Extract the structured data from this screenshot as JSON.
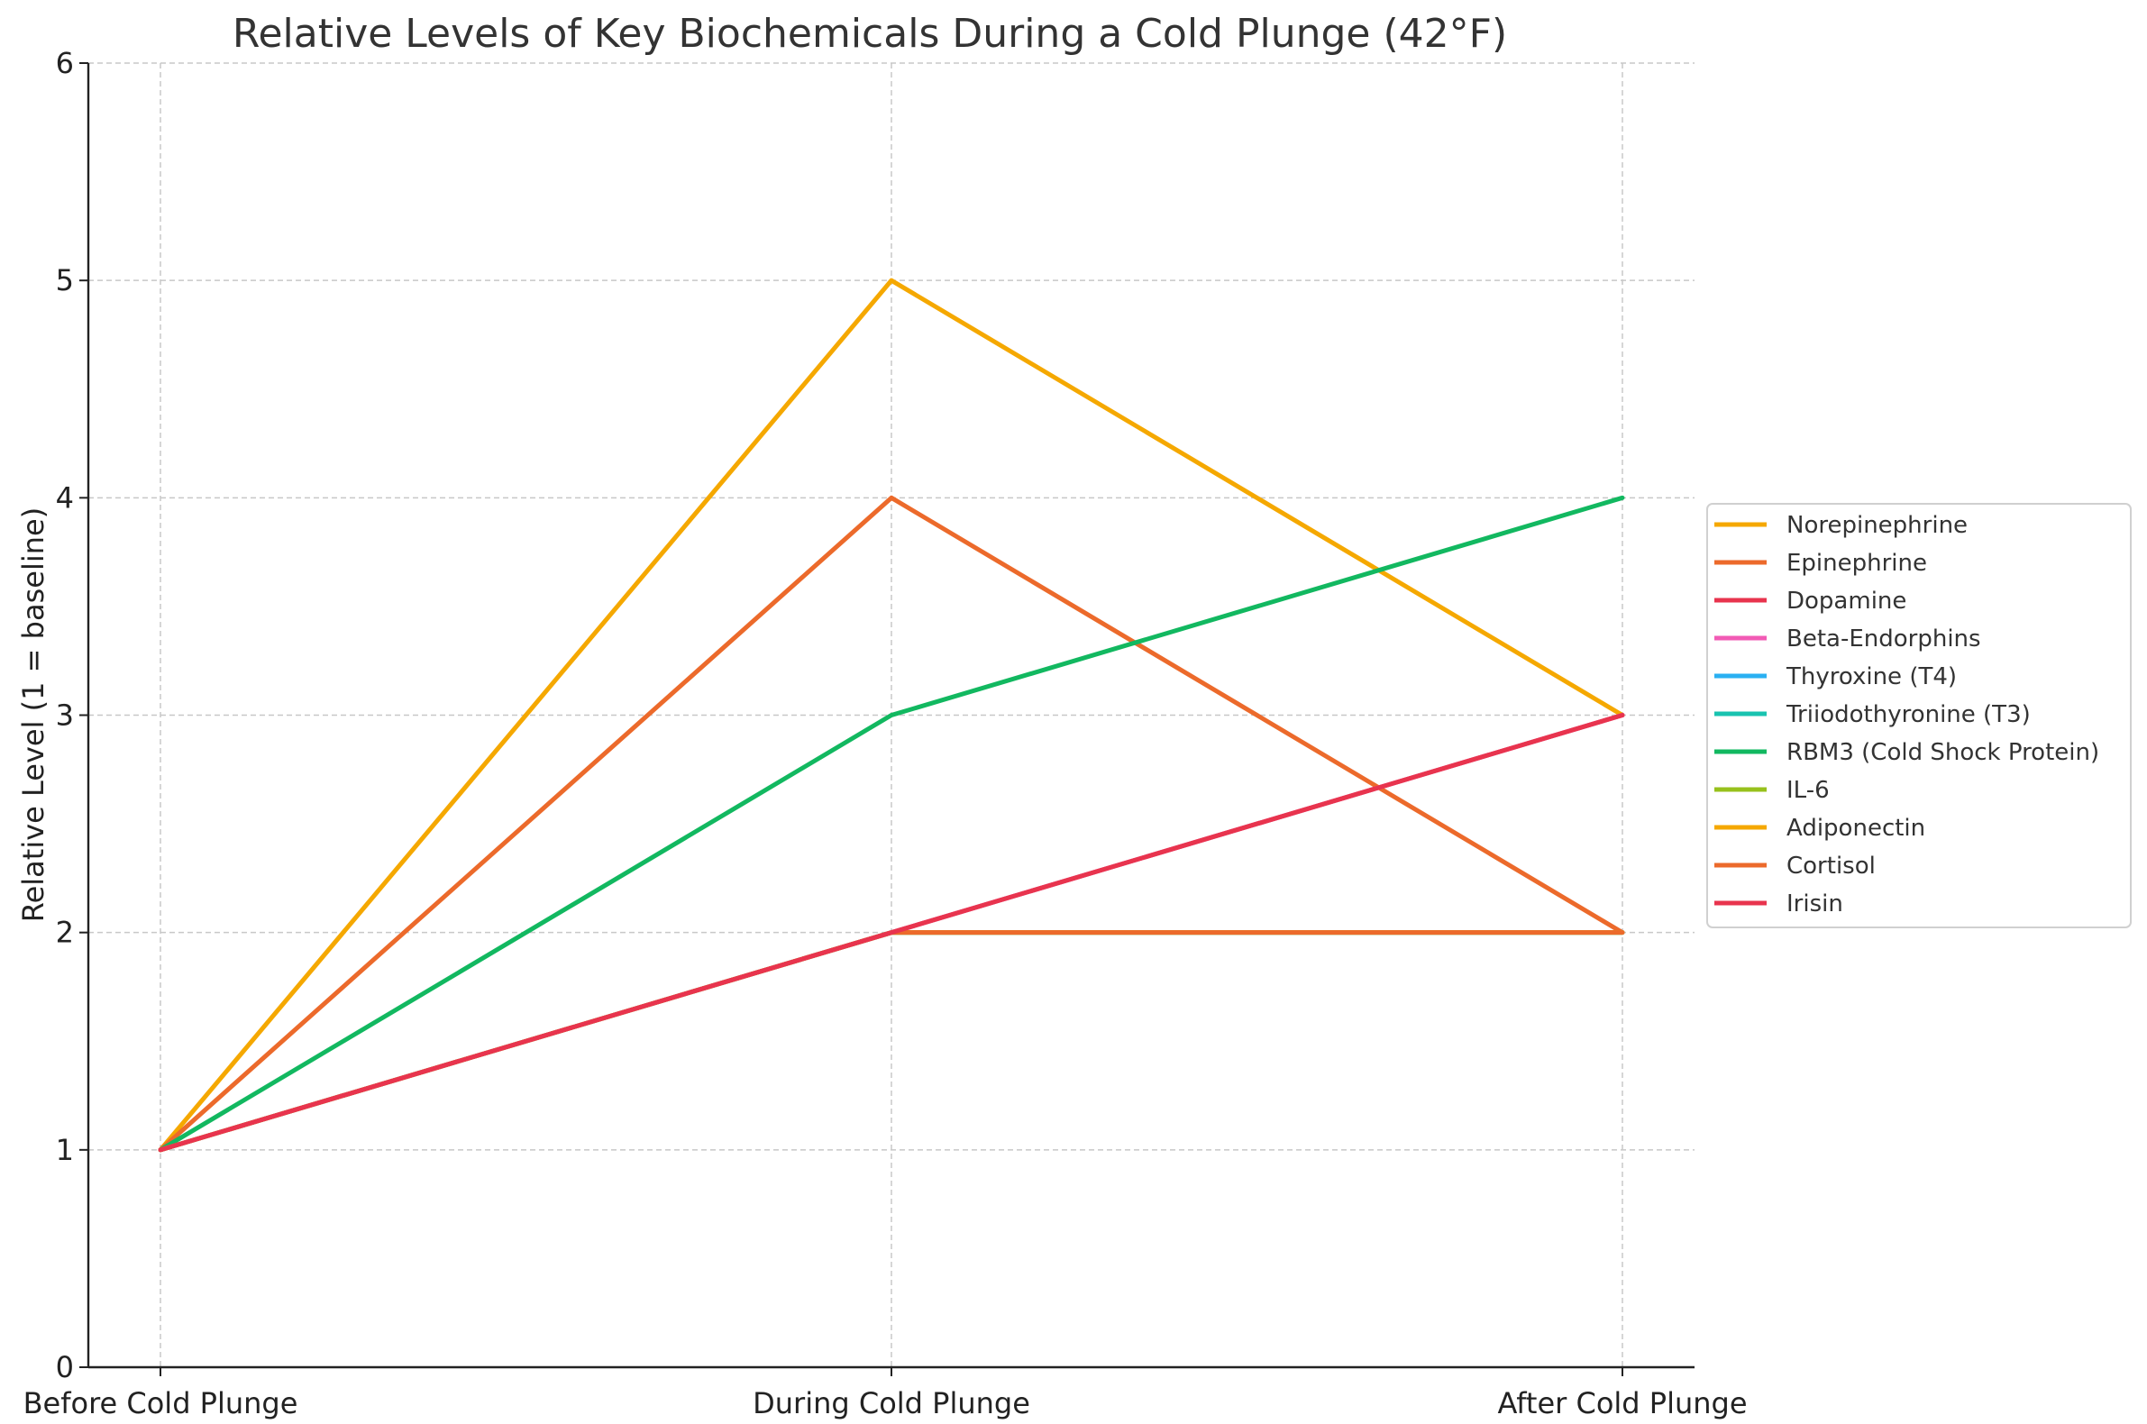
{
  "chart_data": {
    "type": "line",
    "title": "Relative Levels of Key Biochemicals During a Cold Plunge (42°F)",
    "xlabel": "",
    "ylabel": "Relative Level (1 = baseline)",
    "categories": [
      "Before Cold Plunge",
      "During Cold Plunge",
      "After Cold Plunge"
    ],
    "ylim": [
      0,
      6
    ],
    "yticks": [
      0,
      1,
      2,
      3,
      4,
      5,
      6
    ],
    "grid": true,
    "legend_position": "right",
    "series": [
      {
        "name": "Norepinephrine",
        "color": "#F5A800",
        "values": [
          1,
          5,
          3
        ]
      },
      {
        "name": "Epinephrine",
        "color": "#EC6A2B",
        "values": [
          1,
          4,
          2
        ]
      },
      {
        "name": "Dopamine",
        "color": "#E8344E",
        "values": [
          1,
          2,
          3
        ]
      },
      {
        "name": "Beta-Endorphins",
        "color": "#F25BB5",
        "values": [
          1,
          2,
          3
        ]
      },
      {
        "name": "Thyroxine (T4)",
        "color": "#2AB0F2",
        "values": [
          1,
          2,
          2
        ]
      },
      {
        "name": "Triiodothyronine (T3)",
        "color": "#19C3B0",
        "values": [
          1,
          2,
          2
        ]
      },
      {
        "name": "RBM3 (Cold Shock Protein)",
        "color": "#12B860",
        "values": [
          1,
          3,
          4
        ]
      },
      {
        "name": "IL-6",
        "color": "#97C11C",
        "values": [
          1,
          2,
          2
        ]
      },
      {
        "name": "Adiponectin",
        "color": "#F5A800",
        "values": [
          1,
          2,
          2
        ]
      },
      {
        "name": "Cortisol",
        "color": "#EC6A2B",
        "values": [
          1,
          2,
          2
        ]
      },
      {
        "name": "Irisin",
        "color": "#E8344E",
        "values": [
          1,
          2,
          3
        ]
      }
    ]
  }
}
